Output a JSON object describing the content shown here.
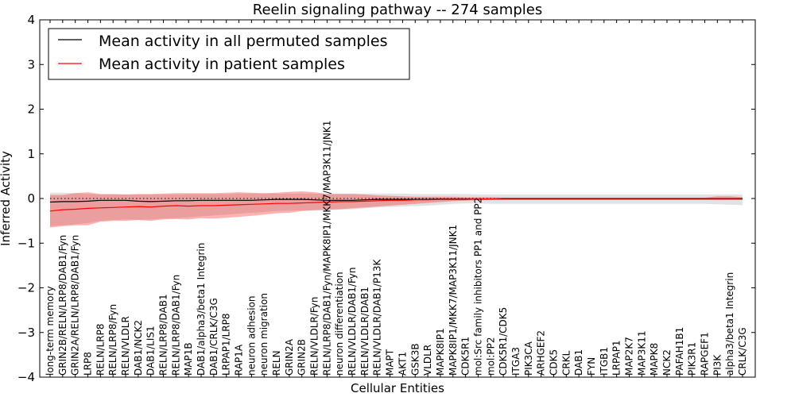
{
  "chart_data": {
    "type": "line",
    "title": "Reelin signaling pathway -- 274 samples",
    "xlabel": "Cellular Entities",
    "ylabel": "Inferred Activity",
    "ylim": [
      -4,
      4
    ],
    "yticks": [
      -4,
      -3,
      -2,
      -1,
      0,
      1,
      2,
      3,
      4
    ],
    "grid": false,
    "legend_position": "top-left",
    "categories": [
      "long-term memory",
      "GRIN2B/RELN/LRP8/DAB1/Fyn",
      "GRIN2A/RELN/LRP8/DAB1/Fyn",
      "LRP8",
      "RELN/LRP8",
      "RELN/LRP8/Fyn",
      "RELN/VLDLR",
      "DAB1/NCK2",
      "DAB1/LIS1",
      "RELN/LRP8/DAB1",
      "RELN/LRP8/DAB1/Fyn",
      "MAP1B",
      "DAB1/alpha3/beta1 Integrin",
      "DAB1/CRLK/C3G",
      "LRPAP1/LRP8",
      "RAP1A",
      "neuron adhesion",
      "neuron migration",
      "RELN",
      "GRIN2A",
      "GRIN2B",
      "RELN/VLDLR/Fyn",
      "RELN/LRP8/DAB1/Fyn/MAPK8IP1/MKK7/MAP3K11/JNK1",
      "neuron differentiation",
      "RELN/VLDLR/DAB1/Fyn",
      "RELN/VLDLR/DAB1",
      "RELN/VLDLR/DAB1/P13K",
      "MAPT",
      "AKT1",
      "GSK3B",
      "VLDLR",
      "MAPK8IP1",
      "MAPK8IP1/MKK7/MAP3K11/JNK1",
      "CDK5R1",
      "mol:Src family inhibitors PP1 and PP2",
      "mol:PP2",
      "CDK5R1/CDK5",
      "ITGA3",
      "PIK3CA",
      "ARHGEF2",
      "CDK5",
      "CRKL",
      "DAB1",
      "FYN",
      "ITGB1",
      "LRPAP1",
      "MAP2K7",
      "MAP3K11",
      "MAPK8",
      "NCK2",
      "PAFAH1B1",
      "PIK3R1",
      "RAPGEF1",
      "PI3K",
      "alpha3/beta1 Integrin",
      "CRLK/C3G"
    ],
    "series": [
      {
        "name": "Mean activity in all permuted samples",
        "color": "#000000",
        "values": [
          -0.08,
          -0.07,
          -0.07,
          -0.06,
          -0.04,
          -0.04,
          -0.04,
          -0.06,
          -0.07,
          -0.06,
          -0.05,
          -0.05,
          -0.04,
          -0.04,
          -0.04,
          -0.04,
          -0.04,
          -0.03,
          -0.02,
          -0.02,
          -0.02,
          -0.03,
          -0.04,
          -0.04,
          -0.04,
          -0.03,
          -0.02,
          -0.02,
          -0.02,
          -0.02,
          -0.02,
          -0.01,
          -0.01,
          -0.01,
          -0.01,
          -0.01,
          -0.01,
          -0.01,
          -0.01,
          -0.01,
          -0.01,
          -0.01,
          -0.01,
          -0.01,
          -0.01,
          -0.01,
          -0.01,
          -0.01,
          -0.01,
          -0.01,
          -0.01,
          -0.01,
          -0.01,
          -0.01,
          -0.01,
          -0.01
        ],
        "band_lower": [
          -0.62,
          -0.6,
          -0.58,
          -0.55,
          -0.5,
          -0.48,
          -0.47,
          -0.48,
          -0.47,
          -0.45,
          -0.44,
          -0.42,
          -0.4,
          -0.38,
          -0.36,
          -0.34,
          -0.32,
          -0.3,
          -0.28,
          -0.27,
          -0.27,
          -0.27,
          -0.26,
          -0.25,
          -0.24,
          -0.22,
          -0.2,
          -0.19,
          -0.18,
          -0.17,
          -0.16,
          -0.14,
          -0.12,
          -0.11,
          -0.11,
          -0.12,
          -0.12,
          -0.12,
          -0.12,
          -0.12,
          -0.12,
          -0.12,
          -0.12,
          -0.12,
          -0.12,
          -0.12,
          -0.12,
          -0.12,
          -0.12,
          -0.12,
          -0.12,
          -0.12,
          -0.12,
          -0.13,
          -0.14,
          -0.15
        ],
        "band_upper": [
          0.13,
          0.13,
          0.12,
          0.1,
          0.09,
          0.09,
          0.09,
          0.09,
          0.09,
          0.09,
          0.09,
          0.1,
          0.1,
          0.1,
          0.1,
          0.11,
          0.11,
          0.11,
          0.11,
          0.11,
          0.11,
          0.11,
          0.11,
          0.11,
          0.11,
          0.11,
          0.11,
          0.11,
          0.11,
          0.1,
          0.1,
          0.1,
          0.1,
          0.1,
          0.09,
          0.09,
          0.09,
          0.09,
          0.09,
          0.09,
          0.09,
          0.09,
          0.09,
          0.09,
          0.09,
          0.09,
          0.09,
          0.09,
          0.09,
          0.09,
          0.09,
          0.09,
          0.09,
          0.09,
          0.09,
          0.09
        ]
      },
      {
        "name": "Mean activity in patient samples",
        "color": "#ff0000",
        "values": [
          -0.28,
          -0.25,
          -0.24,
          -0.22,
          -0.21,
          -0.2,
          -0.19,
          -0.18,
          -0.19,
          -0.17,
          -0.16,
          -0.17,
          -0.16,
          -0.16,
          -0.15,
          -0.14,
          -0.13,
          -0.12,
          -0.11,
          -0.11,
          -0.1,
          -0.09,
          -0.08,
          -0.07,
          -0.07,
          -0.06,
          -0.05,
          -0.04,
          -0.04,
          -0.03,
          -0.03,
          -0.02,
          -0.02,
          -0.02,
          -0.01,
          -0.01,
          0.0,
          0.0,
          0.0,
          0.0,
          0.0,
          0.0,
          0.0,
          0.0,
          0.0,
          0.0,
          0.0,
          0.0,
          0.0,
          0.0,
          0.0,
          0.0,
          0.0,
          0.0,
          0.0,
          0.0
        ],
        "band_lower": [
          -0.65,
          -0.62,
          -0.6,
          -0.6,
          -0.52,
          -0.5,
          -0.5,
          -0.48,
          -0.5,
          -0.47,
          -0.46,
          -0.47,
          -0.44,
          -0.45,
          -0.43,
          -0.41,
          -0.39,
          -0.36,
          -0.33,
          -0.32,
          -0.28,
          -0.26,
          -0.25,
          -0.24,
          -0.22,
          -0.2,
          -0.18,
          -0.16,
          -0.14,
          -0.12,
          -0.1,
          -0.08,
          -0.06,
          -0.05,
          -0.04,
          -0.03,
          -0.02,
          -0.02,
          -0.02,
          -0.02,
          -0.02,
          -0.02,
          -0.02,
          -0.02,
          -0.02,
          -0.02,
          -0.02,
          -0.02,
          -0.02,
          -0.02,
          -0.02,
          -0.02,
          -0.02,
          -0.02,
          -0.02,
          -0.02
        ],
        "band_upper": [
          0.08,
          0.08,
          0.12,
          0.14,
          0.1,
          0.1,
          0.09,
          0.1,
          0.1,
          0.11,
          0.12,
          0.12,
          0.12,
          0.12,
          0.13,
          0.14,
          0.13,
          0.12,
          0.13,
          0.15,
          0.16,
          0.14,
          0.1,
          0.1,
          0.1,
          0.09,
          0.07,
          0.06,
          0.05,
          0.04,
          0.04,
          0.04,
          0.04,
          0.03,
          0.03,
          0.03,
          0.02,
          0.02,
          0.02,
          0.02,
          0.02,
          0.02,
          0.02,
          0.02,
          0.02,
          0.02,
          0.02,
          0.02,
          0.02,
          0.02,
          0.02,
          0.02,
          0.02,
          0.05,
          0.05,
          0.03
        ]
      }
    ],
    "reference_line": 0
  }
}
